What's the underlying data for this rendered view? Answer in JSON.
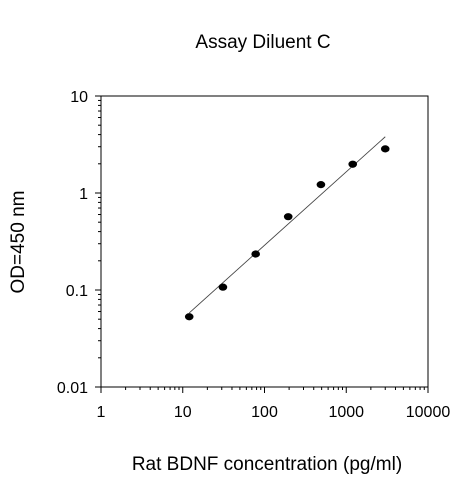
{
  "chart_data": {
    "type": "scatter",
    "title": "Assay Diluent C",
    "xlabel": "Rat BDNF concentration (pg/ml)",
    "ylabel": "OD=450 nm",
    "x_scale": "log",
    "y_scale": "log",
    "xlim": [
      1,
      10000
    ],
    "ylim": [
      0.01,
      10
    ],
    "x_ticks": [
      {
        "value": 1,
        "label": "1"
      },
      {
        "value": 10,
        "label": "10"
      },
      {
        "value": 100,
        "label": "100"
      },
      {
        "value": 1000,
        "label": "1000"
      },
      {
        "value": 10000,
        "label": "10000"
      }
    ],
    "y_ticks": [
      {
        "value": 0.01,
        "label": "0.01"
      },
      {
        "value": 0.1,
        "label": "0.1"
      },
      {
        "value": 1,
        "label": "1"
      },
      {
        "value": 10,
        "label": "10"
      }
    ],
    "grid": false,
    "legend": "none",
    "series": [
      {
        "x": [
          12,
          31,
          78,
          195,
          490,
          1200,
          3000
        ],
        "y": [
          0.053,
          0.107,
          0.235,
          0.57,
          1.22,
          1.98,
          2.85
        ]
      }
    ],
    "trendline": {
      "x": [
        12,
        3000
      ],
      "y": [
        0.058,
        3.8
      ]
    },
    "colors": {
      "marker": "#000000",
      "line": "#444444",
      "axis": "#000000"
    }
  }
}
